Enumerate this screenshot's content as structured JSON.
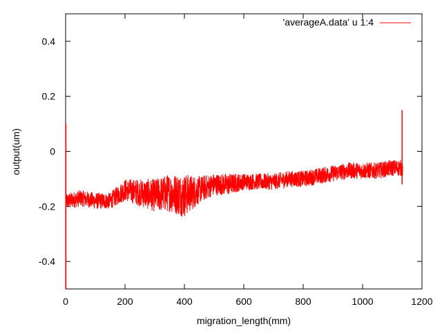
{
  "chart_data": {
    "type": "line",
    "title": "",
    "xlabel": "migration_length(mm)",
    "ylabel": "output(um)",
    "xlim": [
      0,
      1200
    ],
    "ylim": [
      -0.5,
      0.5
    ],
    "x_ticks": [
      0,
      200,
      400,
      600,
      800,
      1000,
      1200
    ],
    "x_tick_labels": [
      "0",
      "200",
      "400",
      "600",
      "800",
      "1000",
      "1200"
    ],
    "y_ticks": [
      -0.4,
      -0.2,
      0,
      0.2,
      0.4
    ],
    "y_tick_labels": [
      "-0.4",
      "-0.2",
      "0",
      "0.2",
      "0.4"
    ],
    "grid": false,
    "legend_position": "top-right",
    "series": [
      {
        "name": "'averageA.data' u 1:4",
        "color": "#ff0000",
        "x_range": [
          0,
          1135
        ],
        "trend": {
          "x": [
            0,
            10,
            50,
            100,
            150,
            200,
            250,
            300,
            350,
            400,
            450,
            500,
            550,
            600,
            650,
            700,
            750,
            800,
            850,
            900,
            950,
            1000,
            1050,
            1100,
            1130
          ],
          "y": [
            -0.18,
            -0.18,
            -0.17,
            -0.18,
            -0.18,
            -0.14,
            -0.15,
            -0.16,
            -0.15,
            -0.16,
            -0.14,
            -0.12,
            -0.12,
            -0.11,
            -0.11,
            -0.11,
            -0.1,
            -0.1,
            -0.09,
            -0.08,
            -0.07,
            -0.07,
            -0.07,
            -0.06,
            -0.06
          ],
          "spread": [
            0.03,
            0.03,
            0.03,
            0.03,
            0.03,
            0.04,
            0.05,
            0.06,
            0.07,
            0.08,
            0.05,
            0.04,
            0.04,
            0.03,
            0.03,
            0.03,
            0.03,
            0.03,
            0.03,
            0.03,
            0.03,
            0.03,
            0.03,
            0.03,
            0.03
          ]
        },
        "spikes": [
          {
            "x": 1,
            "y_min": -0.5,
            "y_max": 0.1
          },
          {
            "x": 1133,
            "y_min": -0.12,
            "y_max": 0.15
          }
        ]
      }
    ]
  }
}
